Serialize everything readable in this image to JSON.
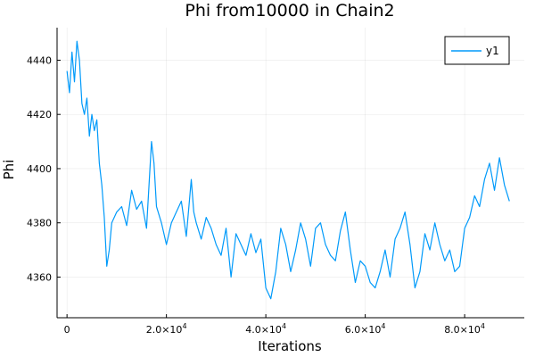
{
  "chart_data": {
    "type": "line",
    "title": "Phi from10000 in Chain2",
    "xlabel": "Iterations",
    "ylabel": "Phi",
    "xlim": [
      -2000,
      92000
    ],
    "ylim": [
      4345,
      4452
    ],
    "grid": true,
    "legend_position": "top-right",
    "series_color": "#009AFA",
    "x_ticks": [
      {
        "value": 0,
        "label": "0",
        "sup": ""
      },
      {
        "value": 20000,
        "label": "2.0×10",
        "sup": "4"
      },
      {
        "value": 40000,
        "label": "4.0×10",
        "sup": "4"
      },
      {
        "value": 60000,
        "label": "6.0×10",
        "sup": "4"
      },
      {
        "value": 80000,
        "label": "8.0×10",
        "sup": "4"
      }
    ],
    "y_ticks": [
      {
        "value": 4360,
        "label": "4360"
      },
      {
        "value": 4380,
        "label": "4380"
      },
      {
        "value": 4400,
        "label": "4400"
      },
      {
        "value": 4420,
        "label": "4420"
      },
      {
        "value": 4440,
        "label": "4440"
      }
    ],
    "series": [
      {
        "name": "y1",
        "x": [
          0,
          500,
          1000,
          1500,
          2000,
          2500,
          3000,
          3500,
          4000,
          4500,
          5000,
          5500,
          6000,
          6500,
          7000,
          7500,
          8000,
          8500,
          9000,
          10000,
          11000,
          12000,
          13000,
          14000,
          15000,
          16000,
          16500,
          17000,
          17500,
          18000,
          19000,
          20000,
          21000,
          22000,
          23000,
          24000,
          25000,
          25500,
          26000,
          27000,
          28000,
          29000,
          30000,
          31000,
          32000,
          33000,
          34000,
          35000,
          36000,
          37000,
          38000,
          39000,
          40000,
          41000,
          42000,
          43000,
          44000,
          45000,
          46000,
          47000,
          48000,
          49000,
          50000,
          51000,
          52000,
          53000,
          54000,
          55000,
          56000,
          57000,
          58000,
          59000,
          60000,
          61000,
          62000,
          63000,
          64000,
          65000,
          66000,
          67000,
          68000,
          69000,
          70000,
          71000,
          72000,
          73000,
          74000,
          75000,
          76000,
          77000,
          78000,
          79000,
          80000,
          81000,
          82000,
          83000,
          84000,
          85000,
          86000,
          87000,
          88000,
          89000
        ],
        "y": [
          4436,
          4428,
          4443,
          4432,
          4447,
          4440,
          4424,
          4420,
          4426,
          4412,
          4420,
          4414,
          4418,
          4402,
          4394,
          4382,
          4364,
          4370,
          4380,
          4384,
          4386,
          4379,
          4392,
          4385,
          4388,
          4378,
          4394,
          4410,
          4402,
          4386,
          4380,
          4372,
          4380,
          4384,
          4388,
          4375,
          4396,
          4384,
          4380,
          4374,
          4382,
          4378,
          4372,
          4368,
          4378,
          4360,
          4376,
          4372,
          4368,
          4376,
          4369,
          4374,
          4356,
          4352,
          4362,
          4378,
          4372,
          4362,
          4370,
          4380,
          4374,
          4364,
          4378,
          4380,
          4372,
          4368,
          4366,
          4377,
          4384,
          4370,
          4358,
          4366,
          4364,
          4358,
          4356,
          4362,
          4370,
          4360,
          4374,
          4378,
          4384,
          4372,
          4356,
          4362,
          4376,
          4370,
          4380,
          4372,
          4366,
          4370,
          4362,
          4364,
          4378,
          4382,
          4390,
          4386,
          4396,
          4402,
          4392,
          4404,
          4394,
          4388
        ]
      }
    ]
  }
}
